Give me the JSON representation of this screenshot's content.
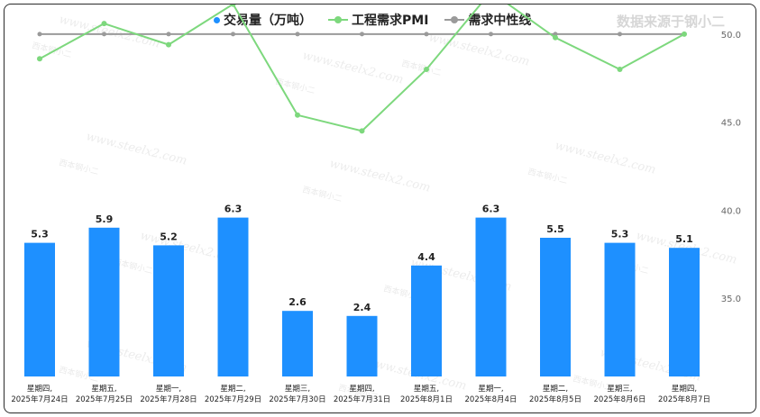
{
  "source_note": "数据来源于钢小二",
  "watermark_text": "www.steelx2.com",
  "watermark_logo_text": "西本钢小二",
  "colors": {
    "bar": "#1e90ff",
    "pmi": "#7dd87d",
    "neutral": "#9a9a9a"
  },
  "chart_data": {
    "type": "bar",
    "categories": [
      [
        "星期四,",
        "2025年7月24日"
      ],
      [
        "星期五,",
        "2025年7月25日"
      ],
      [
        "星期一,",
        "2025年7月28日"
      ],
      [
        "星期二,",
        "2025年7月29日"
      ],
      [
        "星期三,",
        "2025年7月30日"
      ],
      [
        "星期四,",
        "2025年7月31日"
      ],
      [
        "星期五,",
        "2025年8月1日"
      ],
      [
        "星期一,",
        "2025年8月4日"
      ],
      [
        "星期二,",
        "2025年8月5日"
      ],
      [
        "星期三,",
        "2025年8月6日"
      ],
      [
        "星期四,",
        "2025年8月7日"
      ]
    ],
    "series": [
      {
        "name": "交易量（万吨）",
        "type": "bar",
        "axis": "left",
        "values": [
          5.3,
          5.9,
          5.2,
          6.3,
          2.6,
          2.4,
          4.4,
          6.3,
          5.5,
          5.3,
          5.1
        ],
        "labels": [
          "5.3",
          "5.9",
          "5.2",
          "6.3",
          "2.6",
          "2.4",
          "4.4",
          "6.3",
          "5.5",
          "5.3",
          "5.1"
        ]
      },
      {
        "name": "工程需求PMI",
        "type": "line",
        "axis": "right",
        "values": [
          48.6,
          50.6,
          49.4,
          51.7,
          45.4,
          44.5,
          48.0,
          52.4,
          49.8,
          48.0,
          50.0
        ]
      },
      {
        "name": "需求中性线",
        "type": "line",
        "axis": "right",
        "values": [
          50,
          50,
          50,
          50,
          50,
          50,
          50,
          50,
          50,
          50,
          50
        ]
      }
    ],
    "left_axis": {
      "range": [
        0,
        12
      ],
      "ticks_shown": false
    },
    "right_axis": {
      "range": [
        32.5,
        53.5
      ],
      "ticks": [
        "35.0",
        "40.0",
        "45.0",
        "50.0"
      ]
    },
    "grid": false,
    "legend": "top"
  }
}
